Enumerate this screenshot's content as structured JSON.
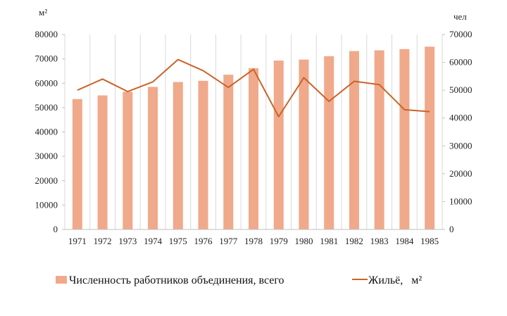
{
  "chart_data": {
    "type": "bar+line",
    "categories": [
      "1971",
      "1972",
      "1973",
      "1974",
      "1975",
      "1976",
      "1977",
      "1978",
      "1979",
      "1980",
      "1981",
      "1982",
      "1983",
      "1984",
      "1985"
    ],
    "series": [
      {
        "name": "Численность работников объединения, всего",
        "kind": "bar",
        "axis": "left",
        "color": "#f0a98a",
        "values": [
          53500,
          55000,
          56500,
          58500,
          60500,
          61000,
          63500,
          66200,
          69300,
          69700,
          71100,
          73200,
          73500,
          74000,
          75000
        ]
      },
      {
        "name": "Жильё,   м²",
        "kind": "line",
        "axis": "right",
        "color": "#c8642a",
        "values": [
          50000,
          54000,
          49500,
          53000,
          61000,
          57000,
          51000,
          57500,
          40500,
          54500,
          46000,
          53200,
          52000,
          43000,
          42300
        ]
      }
    ],
    "y_left": {
      "unit_label": "м²",
      "min": 0,
      "max": 80000,
      "ticks": [
        0,
        10000,
        20000,
        30000,
        40000,
        50000,
        60000,
        70000,
        80000
      ]
    },
    "y_right": {
      "unit_label": "чел",
      "min": 0,
      "max": 70000,
      "ticks": [
        0,
        10000,
        20000,
        30000,
        40000,
        50000,
        60000,
        70000
      ]
    },
    "grid": "vertical",
    "legend": "bottom"
  }
}
